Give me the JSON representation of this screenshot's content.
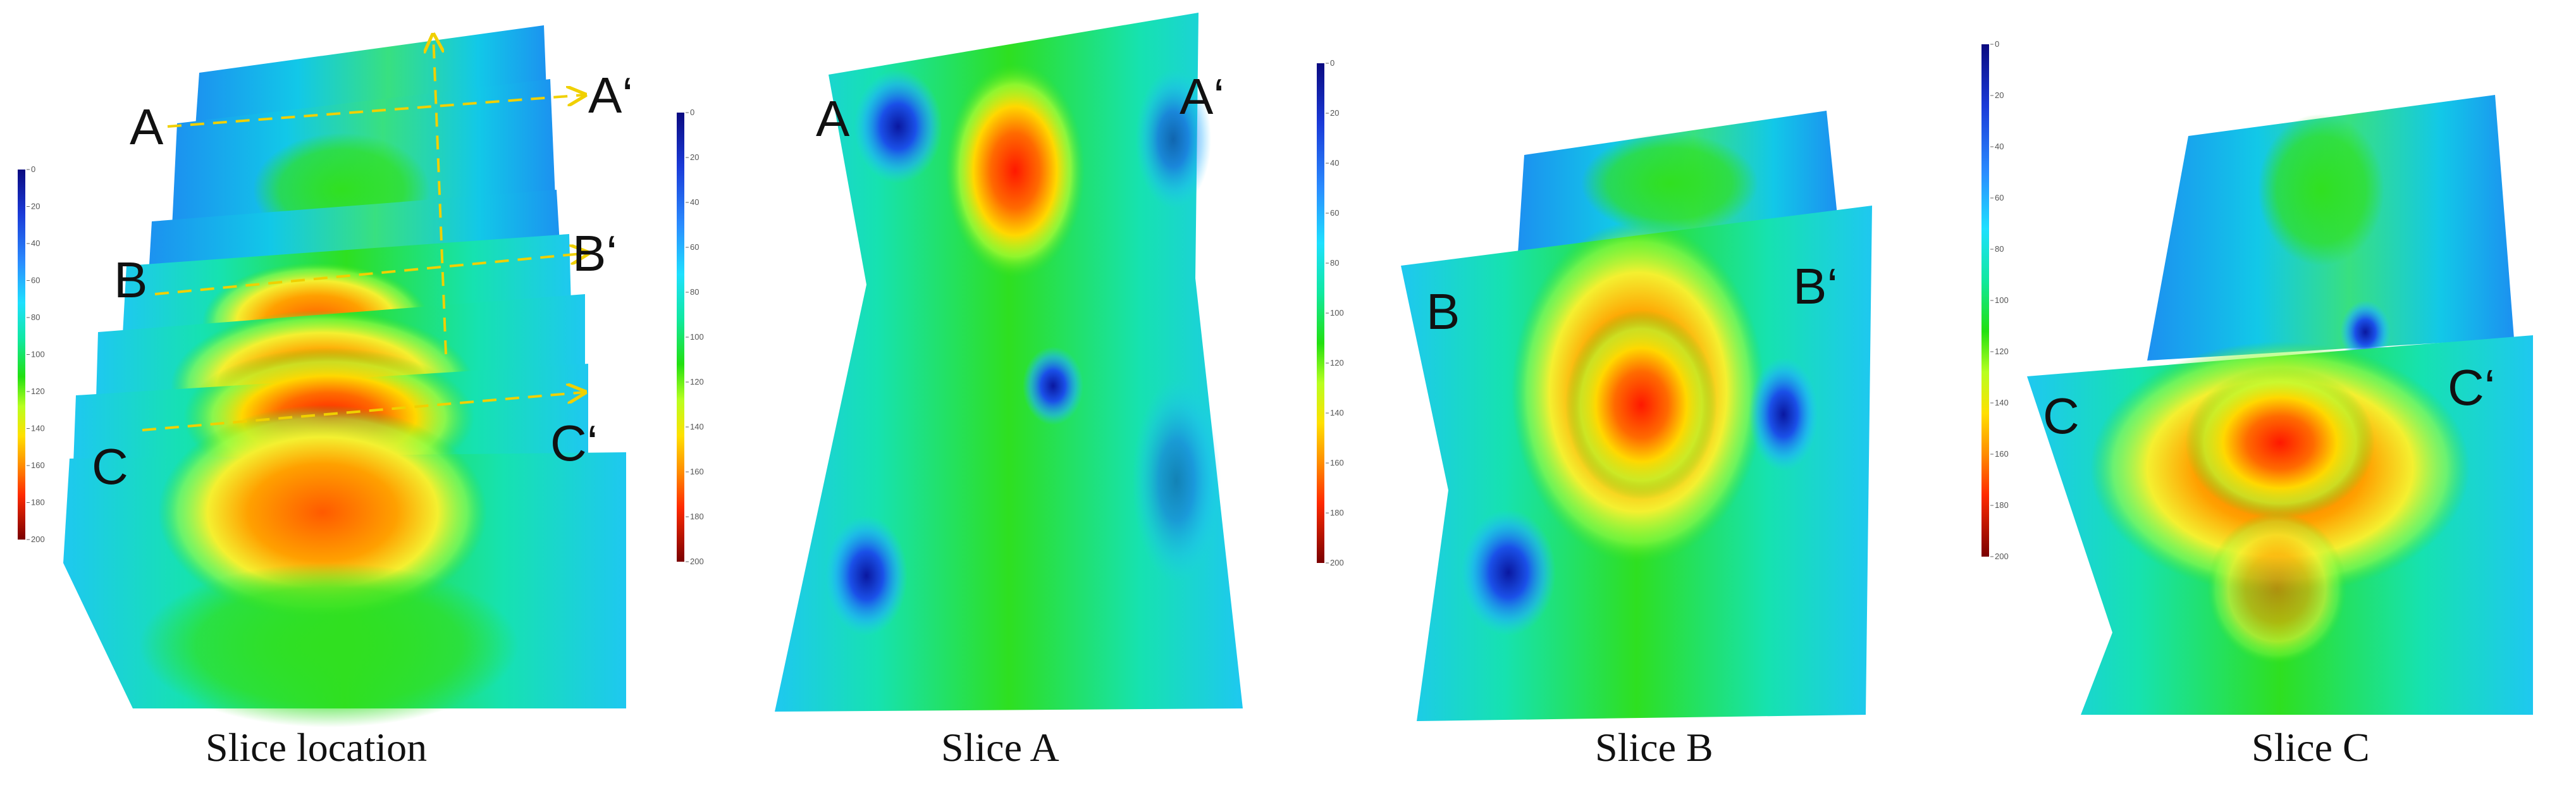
{
  "colorbar": {
    "ticks": [
      "0",
      "20",
      "40",
      "60",
      "80",
      "100",
      "120",
      "140",
      "160",
      "180",
      "200"
    ],
    "colors": [
      "#7a0000",
      "#d40000",
      "#ff2a00",
      "#ff8c00",
      "#ffe000",
      "#b8ff20",
      "#22e010",
      "#10e8a0",
      "#1ee0ff",
      "#2a8cff",
      "#1a3ad8",
      "#0a0a80"
    ]
  },
  "panels": [
    {
      "caption": "Slice location",
      "labels": {
        "a": "A",
        "a_prime": "A‘",
        "b": "B",
        "b_prime": "B‘",
        "c": "C",
        "c_prime": "C‘"
      }
    },
    {
      "caption": "Slice A",
      "labels": {
        "left": "A",
        "right": "A‘"
      }
    },
    {
      "caption": "Slice B",
      "labels": {
        "left": "B",
        "right": "B‘"
      }
    },
    {
      "caption": "Slice C",
      "labels": {
        "left": "C",
        "right": "C‘"
      }
    }
  ],
  "guide_color": "#f0d000"
}
